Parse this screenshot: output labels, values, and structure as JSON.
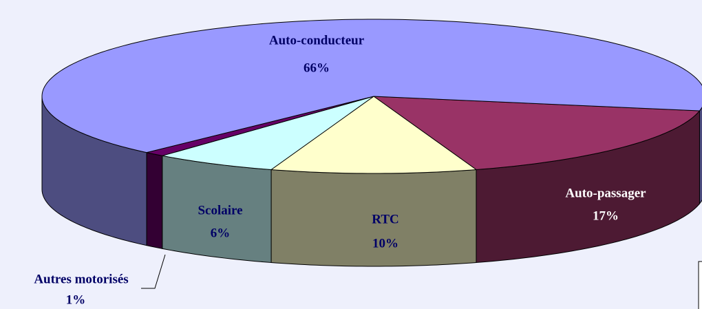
{
  "chart_data": {
    "type": "pie3d",
    "categories": [
      "Auto-passager",
      "RTC",
      "Scolaire",
      "Autres motorisés",
      "Auto-conducteur"
    ],
    "values": [
      17,
      10,
      6,
      1,
      66
    ],
    "value_labels": [
      "17%",
      "10%",
      "6%",
      "1%",
      "66%"
    ],
    "colors": [
      "#993366",
      "#ffffcc",
      "#ccffff",
      "#660066",
      "#9999ff"
    ]
  }
}
